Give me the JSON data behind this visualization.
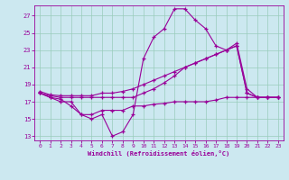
{
  "xlabel": "Windchill (Refroidissement éolien,°C)",
  "x_ticks": [
    0,
    1,
    2,
    3,
    4,
    5,
    6,
    7,
    8,
    9,
    10,
    11,
    12,
    13,
    14,
    15,
    16,
    17,
    18,
    19,
    20,
    21,
    22,
    23
  ],
  "y_ticks": [
    13,
    15,
    17,
    19,
    21,
    23,
    25,
    27
  ],
  "ylim": [
    12.5,
    28.2
  ],
  "xlim": [
    -0.5,
    23.5
  ],
  "background_color": "#cce8f0",
  "grid_color": "#99ccbb",
  "line_color": "#990099",
  "line1_x": [
    0,
    1,
    2,
    3,
    4,
    5,
    6,
    7,
    8,
    9,
    10,
    11,
    12,
    13,
    14,
    15,
    16,
    17,
    18,
    19,
    20,
    21,
    22,
    23
  ],
  "line1_y": [
    18.0,
    17.5,
    17.0,
    17.0,
    15.5,
    15.0,
    15.5,
    13.0,
    13.5,
    15.5,
    22.0,
    24.5,
    25.5,
    27.8,
    27.8,
    26.5,
    25.5,
    23.5,
    23.0,
    23.5,
    18.0,
    17.5,
    17.5,
    17.5
  ],
  "line2_x": [
    0,
    1,
    2,
    3,
    4,
    5,
    6,
    7,
    8,
    9,
    10,
    11,
    12,
    13,
    14,
    15,
    16,
    17,
    18,
    19,
    20,
    21,
    22,
    23
  ],
  "line2_y": [
    18.0,
    17.7,
    17.5,
    17.5,
    17.5,
    17.5,
    17.5,
    17.5,
    17.5,
    17.5,
    18.0,
    18.5,
    19.2,
    20.0,
    21.0,
    21.5,
    22.0,
    22.5,
    23.0,
    23.5,
    18.0,
    17.5,
    17.5,
    17.5
  ],
  "line3_x": [
    0,
    1,
    2,
    3,
    4,
    5,
    6,
    7,
    8,
    9,
    10,
    11,
    12,
    13,
    14,
    15,
    16,
    17,
    18,
    19,
    20,
    21,
    22,
    23
  ],
  "line3_y": [
    18.2,
    17.8,
    17.7,
    17.7,
    17.7,
    17.7,
    18.0,
    18.0,
    18.2,
    18.5,
    19.0,
    19.5,
    20.0,
    20.5,
    21.0,
    21.5,
    22.0,
    22.5,
    23.0,
    23.8,
    18.5,
    17.5,
    17.5,
    17.5
  ],
  "line4_x": [
    0,
    1,
    2,
    3,
    4,
    5,
    6,
    7,
    8,
    9,
    10,
    11,
    12,
    13,
    14,
    15,
    16,
    17,
    18,
    19,
    20,
    21,
    22,
    23
  ],
  "line4_y": [
    18.0,
    17.5,
    17.3,
    16.5,
    15.5,
    15.5,
    16.0,
    16.0,
    16.0,
    16.5,
    16.5,
    16.7,
    16.8,
    17.0,
    17.0,
    17.0,
    17.0,
    17.2,
    17.5,
    17.5,
    17.5,
    17.5,
    17.5,
    17.5
  ]
}
